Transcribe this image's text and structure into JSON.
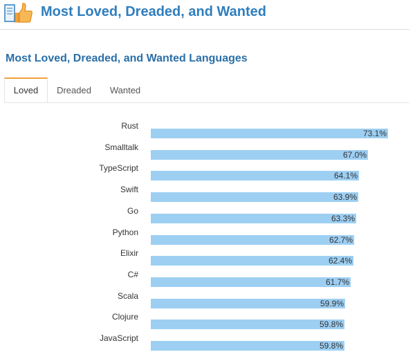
{
  "header": {
    "title": "Most Loved, Dreaded, and Wanted",
    "logo_icon": "thumbs-up-book-icon"
  },
  "section": {
    "title": "Most Loved, Dreaded, and Wanted Languages"
  },
  "tabs": [
    {
      "label": "Loved",
      "active": true
    },
    {
      "label": "Dreaded",
      "active": false
    },
    {
      "label": "Wanted",
      "active": false
    }
  ],
  "colors": {
    "title": "#2f7ebd",
    "bar": "#9dcff3",
    "active_tab": "#f2a33a"
  },
  "chart_data": {
    "type": "bar",
    "orientation": "horizontal",
    "categories": [
      "Rust",
      "Smalltalk",
      "TypeScript",
      "Swift",
      "Go",
      "Python",
      "Elixir",
      "C#",
      "Scala",
      "Clojure",
      "JavaScript"
    ],
    "values": [
      73.1,
      67.0,
      64.1,
      63.9,
      63.3,
      62.7,
      62.4,
      61.7,
      59.9,
      59.8,
      59.8
    ],
    "value_labels": [
      "73.1%",
      "67.0%",
      "64.1%",
      "63.9%",
      "63.3%",
      "62.7%",
      "62.4%",
      "61.7%",
      "59.9%",
      "59.8%",
      "59.8%"
    ],
    "unit": "%",
    "xlim": [
      0,
      100
    ],
    "grid": false,
    "legend": "none"
  }
}
